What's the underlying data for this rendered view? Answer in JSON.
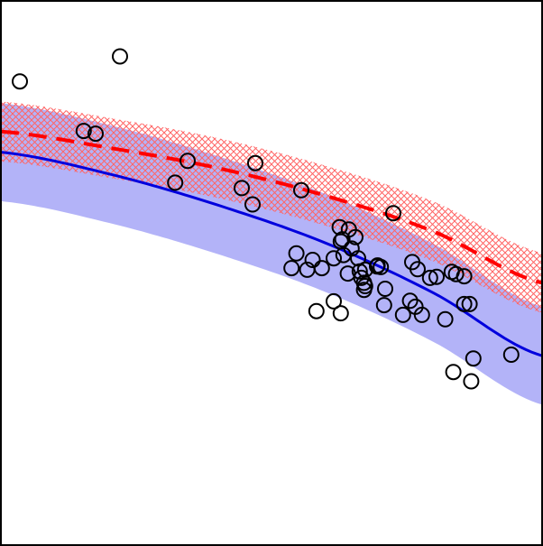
{
  "chart_data": {
    "type": "scatter",
    "title": "",
    "xlabel": "",
    "ylabel": "",
    "xlim": [
      0,
      100
    ],
    "ylim": [
      0,
      100
    ],
    "grid": false,
    "legend": "none",
    "axis_ticks_visible": false,
    "colors": {
      "frame": "#000000",
      "points": "#000000",
      "blue_curve": "#0000dd",
      "blue_band": "#9a9af5",
      "red_curve": "#ff0000",
      "red_hatch": "#ff6464"
    },
    "series": [
      {
        "type": "scatter",
        "marker": "open-circle",
        "points": [
          [
            3.5,
            85.2
          ],
          [
            22,
            89.8
          ],
          [
            15.3,
            76.1
          ],
          [
            17.5,
            75.6
          ],
          [
            34.5,
            70.6
          ],
          [
            32.2,
            66.6
          ],
          [
            47,
            70.2
          ],
          [
            44.5,
            65.6
          ],
          [
            46.5,
            62.6
          ],
          [
            55.5,
            65.2
          ],
          [
            72.5,
            61
          ],
          [
            54.6,
            53.6
          ],
          [
            53.7,
            50.9
          ],
          [
            56.6,
            50.6
          ],
          [
            57.6,
            52.4
          ],
          [
            59.3,
            50.9
          ],
          [
            61.5,
            52.7
          ],
          [
            62.6,
            58.4
          ],
          [
            63.1,
            56.2
          ],
          [
            64.3,
            58
          ],
          [
            62.8,
            55.8
          ],
          [
            65.5,
            56.6
          ],
          [
            64.8,
            54.5
          ],
          [
            63.3,
            53.3
          ],
          [
            66,
            52.7
          ],
          [
            64.1,
            49.9
          ],
          [
            66.3,
            50.3
          ],
          [
            67.3,
            50.6
          ],
          [
            69.5,
            51.2
          ],
          [
            70.2,
            51.1
          ],
          [
            66.6,
            49.1
          ],
          [
            67.1,
            48.2
          ],
          [
            67.3,
            47.6
          ],
          [
            69.6,
            51.4
          ],
          [
            76,
            52
          ],
          [
            77,
            50.7
          ],
          [
            79.3,
            49.1
          ],
          [
            80.5,
            49.3
          ],
          [
            83.3,
            50.2
          ],
          [
            84.1,
            49.8
          ],
          [
            85.6,
            49.4
          ],
          [
            71,
            47.1
          ],
          [
            67.1,
            46.9
          ],
          [
            70.8,
            44.1
          ],
          [
            58.3,
            43
          ],
          [
            61.5,
            44.8
          ],
          [
            62.8,
            42.6
          ],
          [
            74.3,
            42.3
          ],
          [
            75.6,
            44.9
          ],
          [
            76.6,
            43.8
          ],
          [
            77.8,
            42.3
          ],
          [
            82.1,
            41.5
          ],
          [
            85.6,
            44.3
          ],
          [
            86.6,
            44.3
          ],
          [
            94.3,
            35
          ],
          [
            87.3,
            34.3
          ],
          [
            83.6,
            31.8
          ],
          [
            86.9,
            30.1
          ]
        ]
      },
      {
        "type": "line",
        "style": "solid",
        "points": [
          [
            0,
            72.2
          ],
          [
            20,
            68.2
          ],
          [
            40,
            62.5
          ],
          [
            60,
            55.5
          ],
          [
            80,
            46.3
          ],
          [
            100,
            34.8
          ]
        ]
      },
      {
        "type": "band",
        "points": [
          [
            0,
            72.2
          ],
          [
            20,
            68.2
          ],
          [
            40,
            62.5
          ],
          [
            60,
            55.5
          ],
          [
            80,
            46.3
          ],
          [
            100,
            34.8
          ]
        ],
        "halfwidth": 9
      },
      {
        "type": "line",
        "style": "dashed",
        "points": [
          [
            0,
            76
          ],
          [
            20,
            73
          ],
          [
            40,
            69.3
          ],
          [
            60,
            64.2
          ],
          [
            80,
            57.6
          ],
          [
            100,
            48.2
          ]
        ]
      },
      {
        "type": "band-hatched",
        "points": [
          [
            0,
            76
          ],
          [
            20,
            73
          ],
          [
            40,
            69.3
          ],
          [
            60,
            64.2
          ],
          [
            80,
            57.6
          ],
          [
            100,
            48.2
          ]
        ],
        "halfwidth": 5.5
      }
    ]
  }
}
